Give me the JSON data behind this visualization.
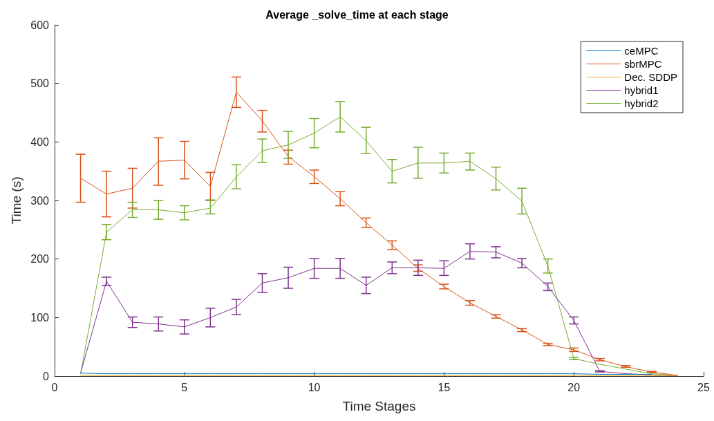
{
  "chart_data": {
    "type": "line",
    "title": "Average _solve_time at each stage",
    "xlabel": "Time Stages",
    "ylabel": "Time (s)",
    "x": [
      1,
      2,
      3,
      4,
      5,
      6,
      7,
      8,
      9,
      10,
      11,
      12,
      13,
      14,
      15,
      16,
      17,
      18,
      19,
      20,
      21,
      22,
      23,
      24
    ],
    "xlim": [
      0,
      25
    ],
    "xticks": [
      0,
      5,
      10,
      15,
      20,
      25
    ],
    "ylim": [
      0,
      600
    ],
    "yticks": [
      0,
      100,
      200,
      300,
      400,
      500,
      600
    ],
    "grid": false,
    "legend": "top right",
    "marker": "none",
    "line_style": "solid",
    "series": [
      {
        "name": "ceMPC",
        "color": "#0072bd",
        "values": [
          5,
          4,
          4,
          4,
          4,
          4,
          4,
          4,
          4,
          4,
          4,
          4,
          4,
          4,
          4,
          4,
          4,
          4,
          4,
          4,
          3,
          3,
          3,
          null
        ]
      },
      {
        "name": "sbrMPC",
        "color": "#d95319",
        "values": [
          338,
          311,
          321,
          367,
          369,
          324,
          485,
          436,
          375,
          341,
          303,
          262,
          224,
          184,
          153,
          125,
          102,
          79,
          54,
          45,
          28,
          16,
          7,
          1
        ],
        "errors": [
          [
            297,
            379
          ],
          [
            272,
            350
          ],
          [
            287,
            355
          ],
          [
            326,
            407
          ],
          [
            337,
            401
          ],
          [
            300,
            348
          ],
          [
            459,
            511
          ],
          [
            417,
            454
          ],
          [
            362,
            386
          ],
          [
            329,
            352
          ],
          [
            291,
            315
          ],
          [
            254,
            270
          ],
          [
            216,
            231
          ],
          [
            179,
            190
          ],
          [
            149,
            157
          ],
          [
            121,
            129
          ],
          [
            99,
            105
          ],
          [
            76,
            81
          ],
          [
            52,
            56
          ],
          [
            42,
            48
          ],
          [
            26,
            30
          ],
          [
            15,
            18
          ],
          [
            6,
            8
          ],
          null
        ]
      },
      {
        "name": "Dec. SDDP",
        "color": "#edb120",
        "values": [
          1,
          1,
          1,
          1,
          1,
          1,
          1,
          1,
          1,
          1,
          1,
          1,
          1,
          1,
          1,
          1,
          1,
          1,
          1,
          1,
          1,
          1,
          1,
          1
        ]
      },
      {
        "name": "hybrid1",
        "color": "#7e2f8e",
        "values": [
          5,
          162,
          92,
          89,
          84,
          100,
          118,
          159,
          168,
          184,
          184,
          155,
          185,
          185,
          184,
          213,
          212,
          193,
          153,
          95,
          8,
          4,
          2,
          0
        ],
        "errors": [
          null,
          [
            155,
            169
          ],
          [
            83,
            101
          ],
          [
            77,
            101
          ],
          [
            72,
            96
          ],
          [
            84,
            116
          ],
          [
            105,
            131
          ],
          [
            143,
            175
          ],
          [
            150,
            186
          ],
          [
            167,
            201
          ],
          [
            167,
            201
          ],
          [
            141,
            169
          ],
          [
            175,
            195
          ],
          [
            172,
            198
          ],
          [
            172,
            197
          ],
          [
            200,
            226
          ],
          [
            202,
            221
          ],
          [
            185,
            201
          ],
          [
            146,
            159
          ],
          [
            89,
            101
          ],
          [
            7,
            9
          ],
          null,
          null,
          null
        ]
      },
      {
        "name": "hybrid2",
        "color": "#77ac30",
        "values": [
          3,
          246,
          284,
          284,
          279,
          287,
          340,
          385,
          395,
          415,
          443,
          402,
          350,
          364,
          364,
          367,
          337,
          299,
          188,
          30,
          20,
          12,
          4,
          1
        ],
        "errors": [
          null,
          [
            233,
            259
          ],
          [
            271,
            297
          ],
          [
            268,
            300
          ],
          [
            267,
            291
          ],
          [
            277,
            301
          ],
          [
            320,
            361
          ],
          [
            365,
            405
          ],
          [
            372,
            418
          ],
          [
            390,
            440
          ],
          [
            417,
            469
          ],
          [
            380,
            425
          ],
          [
            330,
            370
          ],
          [
            338,
            391
          ],
          [
            347,
            381
          ],
          [
            352,
            381
          ],
          [
            318,
            357
          ],
          [
            277,
            321
          ],
          [
            176,
            200
          ],
          [
            28,
            32
          ],
          null,
          null,
          null,
          null
        ]
      }
    ]
  }
}
